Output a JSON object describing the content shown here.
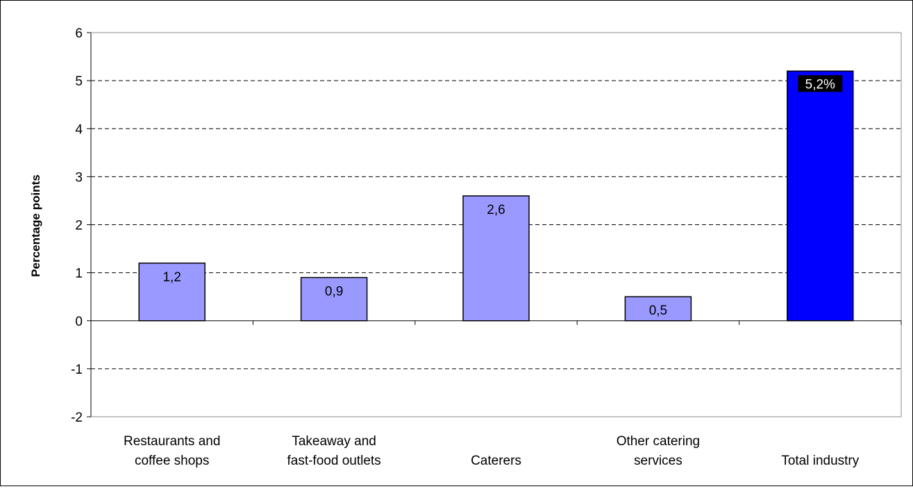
{
  "chart_data": {
    "type": "bar",
    "title": "",
    "xlabel": "",
    "ylabel": "Percentage points",
    "ylim": [
      -2,
      6
    ],
    "yticks": [
      "-2",
      "-1",
      "0",
      "1",
      "2",
      "3",
      "4",
      "5",
      "6"
    ],
    "grid": "horizontal dashed",
    "legend": "none",
    "categories": [
      [
        "Restaurants and",
        "coffee shops"
      ],
      [
        "Takeaway and",
        "fast-food outlets"
      ],
      [
        "Caterers"
      ],
      [
        "Other catering",
        "services"
      ],
      [
        "Total industry"
      ]
    ],
    "values": [
      1.2,
      0.9,
      2.6,
      0.5,
      5.2
    ],
    "data_labels": [
      "1,2",
      "0,9",
      "2,6",
      "0,5",
      "5,2%"
    ],
    "colors": {
      "bar": "#9999ff",
      "highlight_bar": "#0000ff",
      "highlight_label_bg": "#000000",
      "highlight_label_text": "#ffffff",
      "grid": "#000000",
      "axis": "#000000"
    }
  }
}
